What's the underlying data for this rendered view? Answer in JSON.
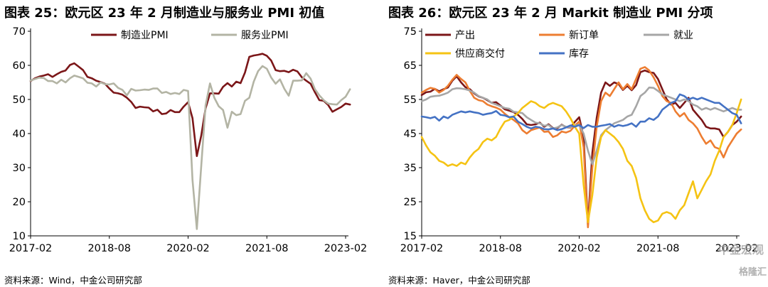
{
  "watermark": {
    "text": "中金宏观",
    "logo_text": "格隆汇"
  },
  "charts": [
    {
      "title": "图表 25：欧元区 23 年 2 月制造业与服务业 PMI 初值",
      "source": "资料来源：Wind，中金公司研究部"
    },
    {
      "title": "图表 26：欧元区 23 年 2 月 Markit 制造业 PMI 分项",
      "source": "资料来源：Haver，中金公司研究部"
    }
  ],
  "chart_data": [
    {
      "type": "line",
      "title": "图表 25：欧元区 23 年 2 月制造业与服务业 PMI 初值",
      "x_start": "2017-02",
      "x_ticks": [
        "2017-02",
        "2018-08",
        "2020-02",
        "2021-08",
        "2023-02"
      ],
      "ylim": [
        10,
        70
      ],
      "y_ticks": [
        10,
        20,
        30,
        40,
        50,
        60,
        70
      ],
      "grid": false,
      "legend": "top-center",
      "series": [
        {
          "name": "制造业PMI",
          "color": "#7b1618",
          "values": [
            55.4,
            56.2,
            56.7,
            57.0,
            57.4,
            56.6,
            57.4,
            58.1,
            58.5,
            60.1,
            60.6,
            59.6,
            58.6,
            56.6,
            56.2,
            55.5,
            55.1,
            54.6,
            53.2,
            52.0,
            51.8,
            51.4,
            50.5,
            49.3,
            47.5,
            47.9,
            47.7,
            47.6,
            46.5,
            47.0,
            45.7,
            45.9,
            46.9,
            46.3,
            46.3,
            47.9,
            49.2,
            44.5,
            33.4,
            39.4,
            47.4,
            51.8,
            51.8,
            51.7,
            53.7,
            54.8,
            53.8,
            55.2,
            54.8,
            57.9,
            62.5,
            62.9,
            63.1,
            63.4,
            62.8,
            61.4,
            58.6,
            58.3,
            58.4,
            58.0,
            58.7,
            58.2,
            56.5,
            55.5,
            54.6,
            52.1,
            49.8,
            49.6,
            48.4,
            46.4,
            47.1,
            47.8,
            48.8,
            48.5
          ]
        },
        {
          "name": "服务业PMI",
          "color": "#b3b4a4",
          "values": [
            55.5,
            56.0,
            56.4,
            56.3,
            55.4,
            55.4,
            54.7,
            55.8,
            55.0,
            56.2,
            57.0,
            56.6,
            56.2,
            54.9,
            54.7,
            53.8,
            55.0,
            54.5,
            54.4,
            54.7,
            53.4,
            52.8,
            51.2,
            53.1,
            52.6,
            52.7,
            52.9,
            52.8,
            53.2,
            53.2,
            51.9,
            52.2,
            51.6,
            51.9,
            51.6,
            52.8,
            52.5,
            26.4,
            12.0,
            30.5,
            48.3,
            54.7,
            50.5,
            48.0,
            46.9,
            41.7,
            46.4,
            45.4,
            45.7,
            49.6,
            50.5,
            55.2,
            58.3,
            59.8,
            59.0,
            56.4,
            54.6,
            55.9,
            53.1,
            51.1,
            55.5,
            55.5,
            55.6,
            57.7,
            56.1,
            53.0,
            51.2,
            49.8,
            48.8,
            48.6,
            48.5,
            49.8,
            50.8,
            53.0
          ]
        }
      ]
    },
    {
      "type": "line",
      "title": "图表 26：欧元区 23 年 2 月 Markit 制造业 PMI 分项",
      "x_start": "2017-02",
      "x_ticks": [
        "2017-02",
        "2018-08",
        "2020-02",
        "2021-08",
        "2023-02"
      ],
      "ylim": [
        15,
        75
      ],
      "y_ticks": [
        15,
        25,
        35,
        45,
        55,
        65,
        75
      ],
      "grid": false,
      "legend": "top-left",
      "series": [
        {
          "name": "产出",
          "color": "#7b1618",
          "values": [
            56.3,
            57.1,
            57.3,
            58.1,
            57.4,
            58.0,
            58.5,
            60.5,
            61.8,
            60.0,
            58.6,
            58.0,
            56.8,
            55.9,
            55.5,
            54.8,
            54.0,
            54.2,
            53.2,
            52.1,
            51.7,
            51.3,
            50.5,
            49.3,
            47.7,
            47.5,
            47.7,
            48.2,
            47.0,
            47.7,
            46.6,
            46.6,
            47.6,
            46.9,
            46.8,
            48.4,
            49.8,
            44.0,
            18.2,
            39.4,
            49.6,
            57.0,
            60.0,
            59.0,
            60.0,
            59.5,
            57.8,
            59.0,
            57.7,
            59.2,
            63.0,
            63.5,
            63.0,
            62.8,
            61.0,
            58.0,
            55.0,
            53.5,
            54.0,
            52.5,
            54.0,
            55.5,
            52.0,
            50.5,
            49.0,
            47.0,
            46.5,
            46.5,
            46.2,
            44.0,
            45.5,
            47.5,
            48.5,
            50.0
          ]
        },
        {
          "name": "新订单",
          "color": "#ed7d31",
          "values": [
            57.0,
            57.8,
            58.4,
            58.1,
            57.0,
            57.8,
            59.0,
            60.8,
            62.2,
            61.0,
            60.0,
            57.5,
            55.5,
            54.8,
            54.5,
            53.5,
            53.0,
            52.6,
            52.0,
            50.8,
            49.8,
            49.0,
            48.0,
            46.0,
            45.0,
            46.0,
            46.4,
            46.8,
            45.5,
            45.6,
            44.0,
            44.5,
            45.6,
            45.3,
            45.8,
            47.3,
            48.5,
            41.0,
            17.5,
            35.0,
            47.0,
            54.5,
            57.0,
            56.0,
            58.0,
            60.0,
            58.0,
            59.5,
            58.0,
            61.0,
            64.0,
            64.5,
            63.5,
            61.5,
            59.0,
            56.0,
            54.5,
            54.0,
            51.5,
            50.0,
            51.0,
            49.0,
            48.0,
            46.5,
            44.0,
            42.0,
            43.0,
            41.0,
            40.5,
            38.0,
            41.0,
            43.0,
            45.0,
            46.2
          ]
        },
        {
          "name": "就业",
          "color": "#a6a6a6",
          "values": [
            54.5,
            55.0,
            55.8,
            56.0,
            56.1,
            56.5,
            57.0,
            58.0,
            58.3,
            58.2,
            58.0,
            57.6,
            57.0,
            56.0,
            55.5,
            55.0,
            54.0,
            53.5,
            53.0,
            52.5,
            52.3,
            51.4,
            51.2,
            51.0,
            49.8,
            49.0,
            48.2,
            48.0,
            47.3,
            47.5,
            46.5,
            46.8,
            47.5,
            47.0,
            46.9,
            47.4,
            47.5,
            45.0,
            40.0,
            36.0,
            40.0,
            44.5,
            46.0,
            47.0,
            48.0,
            48.5,
            49.0,
            50.0,
            50.5,
            53.0,
            56.0,
            57.0,
            58.5,
            58.4,
            57.5,
            56.5,
            56.0,
            55.5,
            55.0,
            54.5,
            55.0,
            54.5,
            53.5,
            53.0,
            52.0,
            52.5,
            52.0,
            52.5,
            52.0,
            51.5,
            52.0,
            52.5,
            52.0,
            52.0
          ]
        },
        {
          "name": "供应商交付",
          "color": "#f5c313",
          "values": [
            44.0,
            41.5,
            39.5,
            38.5,
            37.0,
            36.5,
            35.5,
            36.0,
            35.5,
            36.5,
            36.0,
            38.0,
            39.5,
            40.5,
            42.5,
            43.5,
            43.0,
            44.0,
            46.5,
            48.5,
            49.0,
            50.0,
            51.0,
            52.5,
            53.5,
            54.5,
            54.0,
            53.0,
            52.5,
            53.5,
            54.0,
            53.5,
            53.0,
            51.5,
            49.5,
            47.0,
            45.0,
            30.0,
            19.0,
            27.0,
            38.0,
            44.0,
            46.0,
            45.0,
            44.0,
            42.5,
            40.5,
            37.0,
            35.5,
            32.0,
            26.0,
            22.5,
            20.0,
            19.0,
            19.5,
            21.5,
            22.0,
            21.5,
            20.0,
            22.5,
            24.0,
            27.5,
            31.0,
            26.0,
            28.5,
            31.0,
            33.0,
            37.0,
            40.0,
            44.0,
            45.5,
            47.5,
            51.0,
            55.0
          ]
        },
        {
          "name": "库存",
          "color": "#4472c4",
          "values": [
            50.0,
            49.8,
            49.5,
            49.9,
            48.8,
            50.0,
            49.5,
            50.5,
            51.0,
            51.5,
            51.2,
            51.5,
            51.2,
            51.0,
            50.5,
            50.8,
            51.0,
            51.6,
            50.5,
            50.3,
            49.8,
            50.0,
            48.5,
            47.8,
            47.0,
            46.5,
            47.0,
            46.8,
            46.3,
            46.2,
            46.5,
            46.0,
            46.3,
            46.8,
            47.4,
            47.0,
            47.5,
            46.6,
            47.5,
            47.0,
            47.0,
            47.3,
            47.5,
            47.8,
            47.0,
            47.5,
            47.2,
            47.5,
            48.0,
            47.0,
            48.5,
            48.5,
            49.5,
            49.0,
            50.0,
            52.0,
            53.0,
            54.0,
            54.5,
            56.5,
            56.0,
            55.0,
            55.5,
            55.0,
            55.5,
            55.0,
            54.5,
            54.0,
            54.0,
            53.0,
            52.0,
            51.0,
            50.5,
            48.0
          ]
        }
      ]
    }
  ]
}
